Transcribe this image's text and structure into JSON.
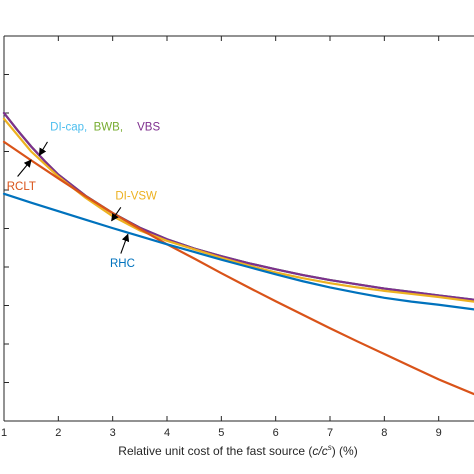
{
  "chart_data": {
    "type": "line",
    "title": "",
    "xlabel": "Relative unit cost of the fast source (",
    "xlabel_math": "c/c",
    "xlabel_sup": "s",
    "xlabel_tail": ") (%)",
    "xlim": [
      1,
      9.65
    ],
    "ylim": [
      0,
      1
    ],
    "x_ticks": [
      1,
      2,
      3,
      4,
      5,
      6,
      7,
      8,
      9
    ],
    "y_ticks": [
      0.1,
      0.2,
      0.3,
      0.4,
      0.5,
      0.6,
      0.7,
      0.8,
      0.9
    ],
    "grid": false,
    "series": [
      {
        "name": "DI-cap",
        "color": "#4DBEEE",
        "x": [
          1,
          1.25,
          1.5,
          1.75,
          2,
          2.5,
          3,
          3.5,
          4,
          4.5,
          5,
          5.5,
          6,
          6.5,
          7,
          7.5,
          8,
          8.5,
          9,
          9.65
        ],
        "y": [
          0.8,
          0.755,
          0.713,
          0.675,
          0.64,
          0.585,
          0.54,
          0.502,
          0.472,
          0.448,
          0.428,
          0.41,
          0.394,
          0.379,
          0.366,
          0.355,
          0.344,
          0.335,
          0.326,
          0.315
        ]
      },
      {
        "name": "BWB",
        "color": "#77AC30",
        "x": [
          1,
          1.25,
          1.5,
          1.75,
          2,
          2.5,
          3,
          3.5,
          4,
          4.5,
          5,
          5.5,
          6,
          6.5,
          7,
          7.5,
          8,
          8.5,
          9,
          9.65
        ],
        "y": [
          0.8,
          0.755,
          0.713,
          0.675,
          0.64,
          0.585,
          0.54,
          0.502,
          0.472,
          0.448,
          0.428,
          0.41,
          0.394,
          0.379,
          0.366,
          0.355,
          0.344,
          0.335,
          0.326,
          0.315
        ]
      },
      {
        "name": "VBS",
        "color": "#7E2F8E",
        "x": [
          1,
          1.25,
          1.5,
          1.75,
          2,
          2.5,
          3,
          3.5,
          4,
          4.5,
          5,
          5.5,
          6,
          6.5,
          7,
          7.5,
          8,
          8.5,
          9,
          9.65
        ],
        "y": [
          0.8,
          0.755,
          0.713,
          0.675,
          0.64,
          0.585,
          0.54,
          0.502,
          0.472,
          0.448,
          0.428,
          0.41,
          0.394,
          0.379,
          0.366,
          0.355,
          0.344,
          0.335,
          0.326,
          0.315
        ]
      },
      {
        "name": "DI-VSW",
        "color": "#EDB120",
        "x": [
          1,
          1.5,
          2,
          2.5,
          3,
          3.5,
          4,
          4.5,
          5,
          5.5,
          6,
          6.5,
          7,
          7.5,
          8,
          8.5,
          9,
          9.65
        ],
        "y": [
          0.785,
          0.7,
          0.635,
          0.58,
          0.532,
          0.495,
          0.468,
          0.446,
          0.424,
          0.404,
          0.386,
          0.371,
          0.358,
          0.347,
          0.338,
          0.33,
          0.322,
          0.31
        ]
      },
      {
        "name": "RCLT",
        "color": "#D95319",
        "x": [
          1,
          1.5,
          2,
          2.5,
          3,
          3.5,
          4,
          4.5,
          5,
          5.5,
          6,
          6.5,
          7,
          7.5,
          8,
          8.5,
          9,
          9.65
        ],
        "y": [
          0.725,
          0.677,
          0.63,
          0.584,
          0.54,
          0.499,
          0.459,
          0.422,
          0.384,
          0.347,
          0.311,
          0.276,
          0.241,
          0.207,
          0.174,
          0.141,
          0.108,
          0.07
        ]
      },
      {
        "name": "RHC",
        "color": "#0072BD",
        "x": [
          1,
          1.5,
          2,
          2.5,
          3,
          3.5,
          4,
          4.5,
          5,
          5.5,
          6,
          6.5,
          7,
          7.5,
          8,
          8.5,
          9,
          9.65
        ],
        "y": [
          0.59,
          0.567,
          0.545,
          0.523,
          0.501,
          0.48,
          0.459,
          0.439,
          0.419,
          0.4,
          0.381,
          0.363,
          0.347,
          0.333,
          0.32,
          0.31,
          0.302,
          0.29
        ]
      }
    ],
    "annotations": [
      {
        "text": "DI-cap,",
        "color": "#4DBEEE",
        "x": 1.85,
        "y": 0.755,
        "arrow_from": [
          1.8,
          0.725
        ],
        "arrow_to": [
          1.65,
          0.69
        ]
      },
      {
        "text": "BWB,",
        "color": "#77AC30",
        "x": 2.65,
        "y": 0.755
      },
      {
        "text": "VBS",
        "color": "#7E2F8E",
        "x": 3.45,
        "y": 0.755
      },
      {
        "text": "RCLT",
        "color": "#D95319",
        "x": 1.05,
        "y": 0.6,
        "arrow_from": [
          1.25,
          0.635
        ],
        "arrow_to": [
          1.5,
          0.678
        ]
      },
      {
        "text": "DI-VSW",
        "color": "#EDB120",
        "x": 3.05,
        "y": 0.575,
        "arrow_from": [
          3.15,
          0.555
        ],
        "arrow_to": [
          2.98,
          0.52
        ]
      },
      {
        "text": "RHC",
        "color": "#0072BD",
        "x": 2.95,
        "y": 0.4,
        "arrow_from": [
          3.15,
          0.435
        ],
        "arrow_to": [
          3.28,
          0.485
        ]
      }
    ]
  }
}
